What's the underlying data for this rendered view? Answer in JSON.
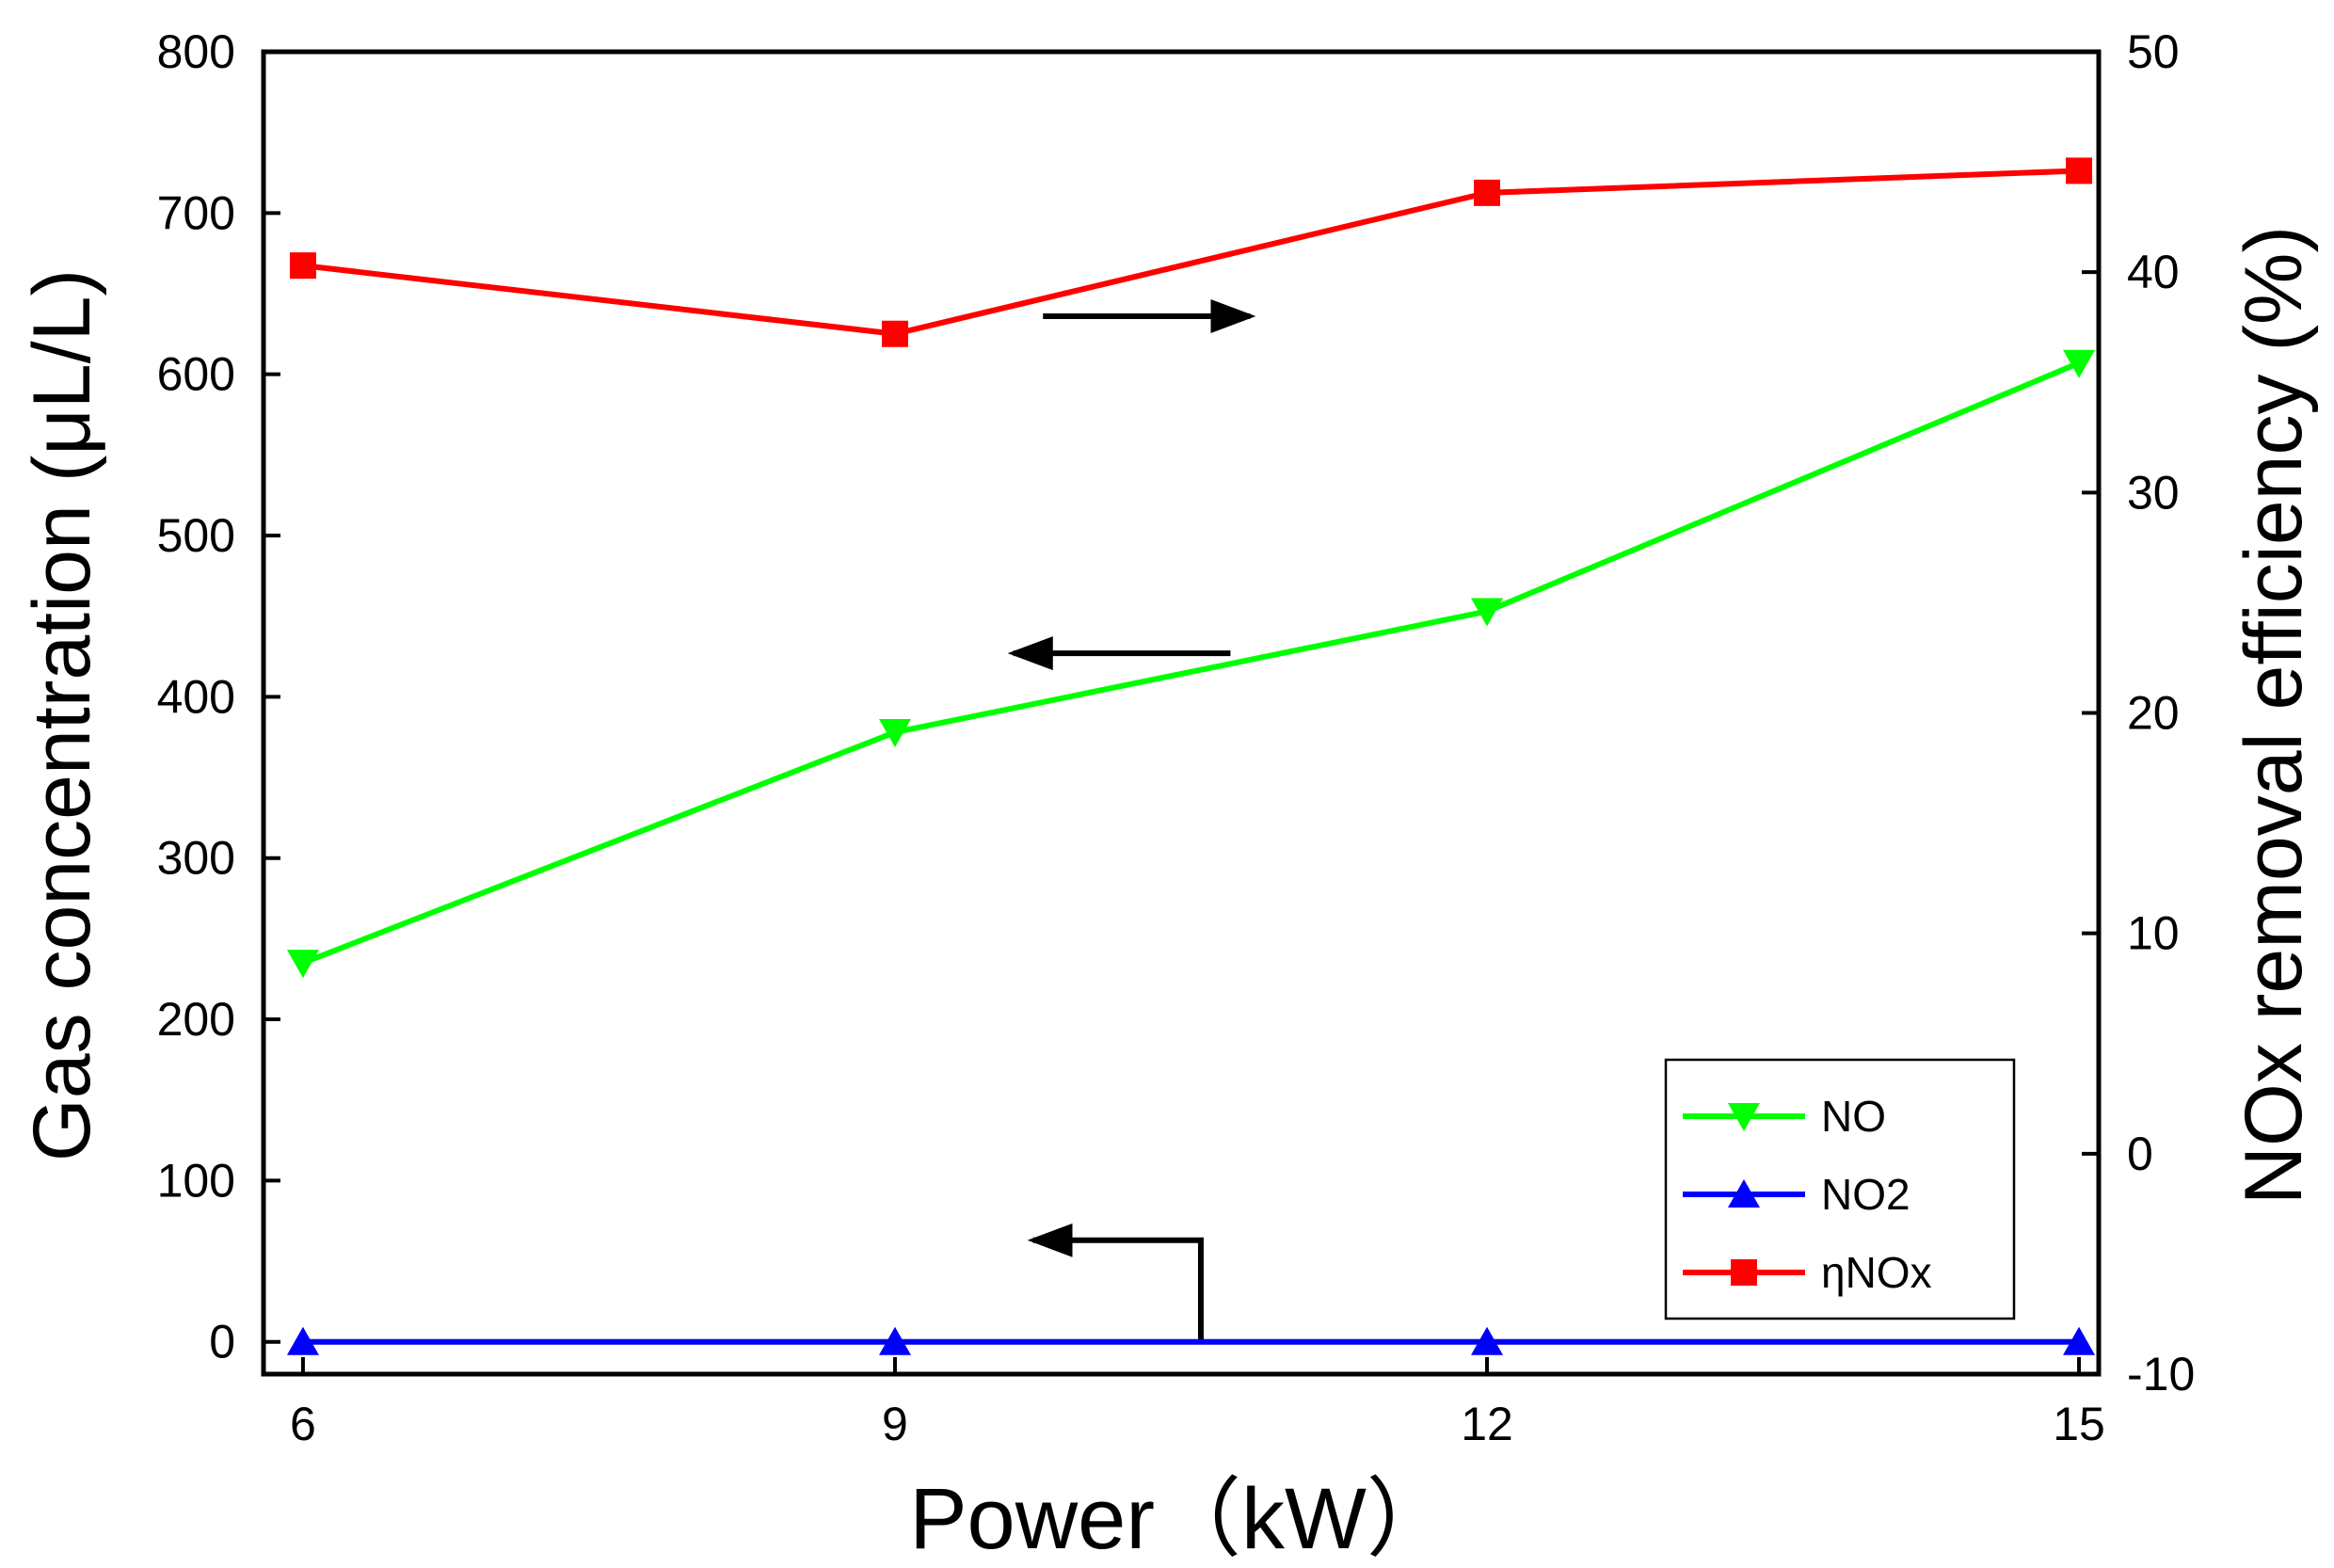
{
  "chart_data": {
    "type": "line",
    "xlabel": "Power（kW）",
    "ylabel_left": "Gas concentration (μL/L)",
    "ylabel_right": "NOx  removal efficiency (%)",
    "x_ticks": [
      6,
      9,
      12,
      15
    ],
    "xlim": [
      5.8,
      15.1
    ],
    "ylim_left": [
      -20,
      800
    ],
    "ylim_right": [
      -10,
      50
    ],
    "y_ticks_left": [
      0,
      100,
      200,
      300,
      400,
      500,
      600,
      700,
      800
    ],
    "y_ticks_right": [
      -10,
      0,
      10,
      20,
      30,
      40,
      50
    ],
    "series": [
      {
        "name": "NO",
        "axis": "left",
        "marker": "triangle-down",
        "color": "#00ff00",
        "x": [
          6,
          9,
          12,
          15
        ],
        "values": [
          235,
          378,
          453,
          607
        ]
      },
      {
        "name": "NO2",
        "axis": "left",
        "marker": "triangle-up",
        "color": "#0000ff",
        "x": [
          6,
          9,
          12,
          15
        ],
        "values": [
          0,
          0,
          0,
          0
        ]
      },
      {
        "name": "ηNOx",
        "axis": "right",
        "marker": "square",
        "color": "#ff0000",
        "x": [
          6,
          9,
          12,
          15
        ],
        "values": [
          40.3,
          37.2,
          43.6,
          44.6
        ]
      }
    ],
    "legend_position": "bottom-right",
    "annotations": [
      {
        "type": "arrow",
        "direction": "right",
        "series": "ηNOx",
        "meaning": "right axis"
      },
      {
        "type": "arrow",
        "direction": "left",
        "series": "NO",
        "meaning": "left axis"
      },
      {
        "type": "arrow",
        "direction": "left",
        "series": "NO2",
        "meaning": "left axis"
      }
    ]
  }
}
